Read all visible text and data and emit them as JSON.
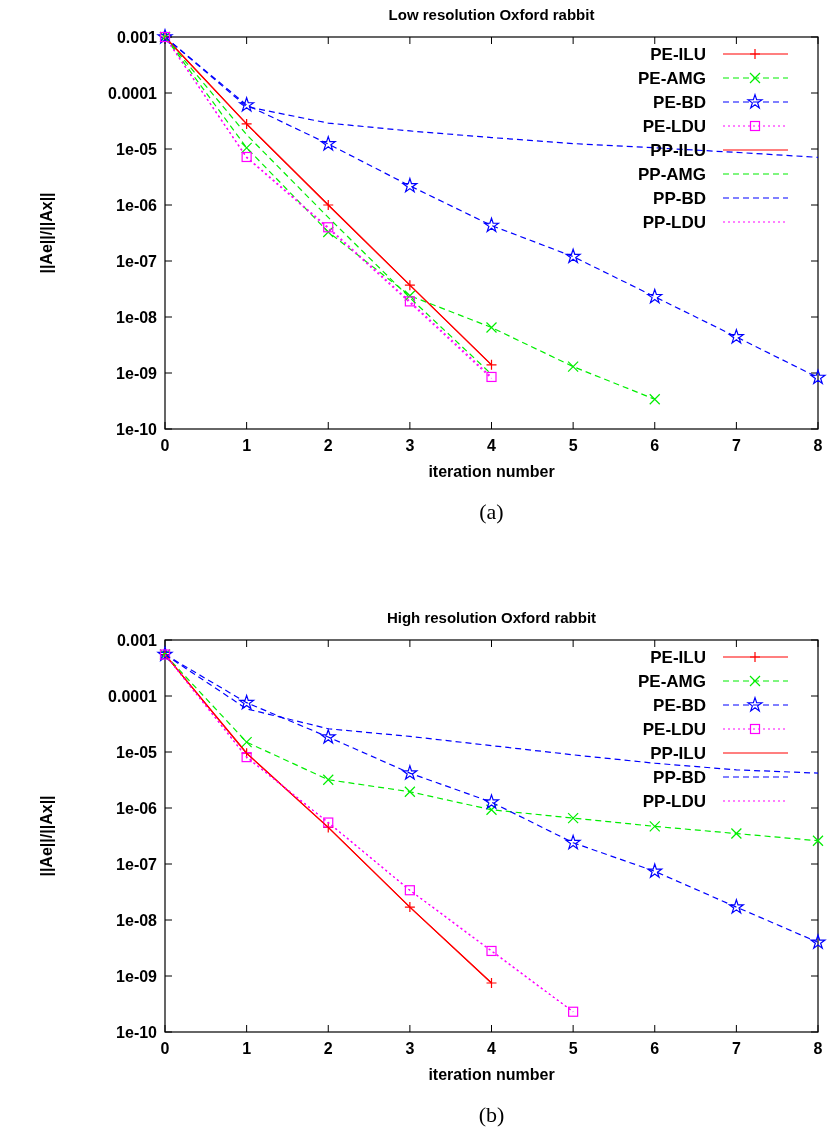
{
  "chart_data": [
    {
      "type": "line",
      "title": "Low resolution Oxford rabbit",
      "xlabel": "iteration number",
      "ylabel": "||Ae||/||Ax||",
      "log": "y",
      "grid": false,
      "legend": "top right",
      "annotations": [
        "(a)"
      ],
      "xlim": [
        0,
        8
      ],
      "xticks": [
        0,
        1,
        2,
        3,
        4,
        5,
        6,
        7,
        8
      ],
      "ylim": [
        1e-10,
        0.001
      ],
      "yticks": [
        {
          "value": 0.001,
          "label": "0.001"
        },
        {
          "value": 0.0001,
          "label": "0.0001"
        },
        {
          "value": 1e-05,
          "label": "1e-05"
        },
        {
          "value": 1e-06,
          "label": "1e-06"
        },
        {
          "value": 1e-07,
          "label": "1e-07"
        },
        {
          "value": 1e-08,
          "label": "1e-08"
        },
        {
          "value": 1e-09,
          "label": "1e-09"
        },
        {
          "value": 1e-10,
          "label": "1e-10"
        }
      ],
      "series": [
        {
          "name": "PE-ILU",
          "color": "#ff0000",
          "marker": "plus",
          "line_style": "solid",
          "x": [
            0,
            1,
            2,
            3,
            4
          ],
          "values": [
            0.001,
            2.8e-05,
            1e-06,
            3.7e-08,
            1.4e-09
          ]
        },
        {
          "name": "PE-AMG",
          "color": "#00ee00",
          "marker": "cross",
          "line_style": "dashed",
          "x": [
            0,
            1,
            2,
            3,
            4,
            5,
            6
          ],
          "values": [
            0.001,
            1.05e-05,
            3.3e-07,
            2.4e-08,
            6.5e-09,
            1.3e-09,
            3.4e-10
          ]
        },
        {
          "name": "PE-BD",
          "color": "#0000ff",
          "marker": "star",
          "line_style": "dashed",
          "x": [
            0,
            1,
            2,
            3,
            4,
            5,
            6,
            7,
            8
          ],
          "values": [
            0.001,
            6.1e-05,
            1.23e-05,
            2.2e-06,
            4.3e-07,
            1.2e-07,
            2.3e-08,
            4.4e-09,
            8.3e-10
          ]
        },
        {
          "name": "PE-LDU",
          "color": "#ff00ff",
          "marker": "square",
          "line_style": "dotted",
          "x": [
            0,
            1,
            2,
            3,
            4
          ],
          "values": [
            0.001,
            7.2e-06,
            4e-07,
            1.9e-08,
            8.5e-10
          ]
        },
        {
          "name": "PP-ILU",
          "color": "#ff0000",
          "marker": "none",
          "line_style": "solid",
          "x": [
            0,
            1,
            2,
            3,
            4
          ],
          "values": [
            0.001,
            2.8e-05,
            1e-06,
            3.7e-08,
            1.4e-09
          ]
        },
        {
          "name": "PP-AMG",
          "color": "#00ee00",
          "marker": "none",
          "line_style": "dashed",
          "x": [
            0,
            1,
            2,
            3,
            4
          ],
          "values": [
            0.001,
            1.8e-05,
            6e-07,
            2.2e-08,
            9.5e-10
          ]
        },
        {
          "name": "PP-BD",
          "color": "#0000ff",
          "marker": "none",
          "line_style": "dashed",
          "x": [
            0,
            1,
            2,
            3,
            4,
            5,
            6,
            7,
            8
          ],
          "values": [
            0.001,
            5.7e-05,
            2.9e-05,
            2.1e-05,
            1.6e-05,
            1.25e-05,
            1.05e-05,
            8.7e-06,
            7.1e-06
          ]
        },
        {
          "name": "PP-LDU",
          "color": "#ff00ff",
          "marker": "none",
          "line_style": "dotted",
          "x": [
            0,
            1,
            2,
            3,
            4
          ],
          "values": [
            0.001,
            7e-06,
            3.8e-07,
            1.8e-08,
            8e-10
          ]
        }
      ]
    },
    {
      "type": "line",
      "title": "High resolution Oxford rabbit",
      "xlabel": "iteration number",
      "ylabel": "||Ae||/||Ax||",
      "log": "y",
      "grid": false,
      "legend": "top right",
      "annotations": [
        "(b)"
      ],
      "xlim": [
        0,
        8
      ],
      "xticks": [
        0,
        1,
        2,
        3,
        4,
        5,
        6,
        7,
        8
      ],
      "ylim": [
        1e-10,
        0.001
      ],
      "yticks": [
        {
          "value": 0.001,
          "label": "0.001"
        },
        {
          "value": 0.0001,
          "label": "0.0001"
        },
        {
          "value": 1e-05,
          "label": "1e-05"
        },
        {
          "value": 1e-06,
          "label": "1e-06"
        },
        {
          "value": 1e-07,
          "label": "1e-07"
        },
        {
          "value": 1e-08,
          "label": "1e-08"
        },
        {
          "value": 1e-09,
          "label": "1e-09"
        },
        {
          "value": 1e-10,
          "label": "1e-10"
        }
      ],
      "series": [
        {
          "name": "PE-ILU",
          "color": "#ff0000",
          "marker": "plus",
          "line_style": "solid",
          "x": [
            0,
            1,
            2,
            3,
            4
          ],
          "values": [
            0.00055,
            9.5e-06,
            4.5e-07,
            1.7e-08,
            7.5e-10
          ]
        },
        {
          "name": "PE-AMG",
          "color": "#00ee00",
          "marker": "cross",
          "line_style": "dashed",
          "x": [
            0,
            1,
            2,
            3,
            4,
            5,
            6,
            7,
            8
          ],
          "values": [
            0.00055,
            1.5e-05,
            3.2e-06,
            1.95e-06,
            9.3e-07,
            6.6e-07,
            4.7e-07,
            3.5e-07,
            2.6e-07
          ]
        },
        {
          "name": "PE-BD",
          "color": "#0000ff",
          "marker": "star",
          "line_style": "dashed",
          "x": [
            0,
            1,
            2,
            3,
            4,
            5,
            6,
            7,
            8
          ],
          "values": [
            0.00055,
            7.6e-05,
            1.85e-05,
            4.2e-06,
            1.27e-06,
            2.4e-07,
            7.4e-08,
            1.7e-08,
            4e-09
          ]
        },
        {
          "name": "PE-LDU",
          "color": "#ff00ff",
          "marker": "square",
          "line_style": "dotted",
          "x": [
            0,
            1,
            2,
            3,
            4,
            5
          ],
          "values": [
            0.00055,
            8.1e-06,
            5.5e-07,
            3.4e-08,
            2.8e-09,
            2.3e-10
          ]
        },
        {
          "name": "PP-ILU",
          "color": "#ff0000",
          "marker": "none",
          "line_style": "solid",
          "x": [
            0,
            1,
            2,
            3,
            4
          ],
          "values": [
            0.00055,
            9.5e-06,
            4.5e-07,
            1.7e-08,
            7.5e-10
          ]
        },
        {
          "name": "PP-BD",
          "color": "#0000ff",
          "marker": "none",
          "line_style": "dashed",
          "x": [
            0,
            1,
            2,
            3,
            4,
            5,
            6,
            7,
            8
          ],
          "values": [
            0.00055,
            5.9e-05,
            2.6e-05,
            1.9e-05,
            1.3e-05,
            8.9e-06,
            6.3e-06,
            4.8e-06,
            4.2e-06
          ]
        },
        {
          "name": "PP-LDU",
          "color": "#ff00ff",
          "marker": "none",
          "line_style": "dotted",
          "x": [
            0,
            1,
            2,
            3,
            4,
            5
          ],
          "values": [
            0.00055,
            8.1e-06,
            5.5e-07,
            3.4e-08,
            2.8e-09,
            2.3e-10
          ]
        }
      ]
    }
  ]
}
